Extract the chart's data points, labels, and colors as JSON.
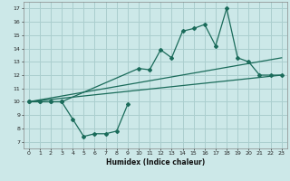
{
  "xlabel": "Humidex (Indice chaleur)",
  "bg_color": "#cce8e8",
  "grid_color": "#aacece",
  "line_color": "#1a6b5a",
  "xlim": [
    -0.5,
    23.5
  ],
  "ylim": [
    6.5,
    17.5
  ],
  "xticks": [
    0,
    1,
    2,
    3,
    4,
    5,
    6,
    7,
    8,
    9,
    10,
    11,
    12,
    13,
    14,
    15,
    16,
    17,
    18,
    19,
    20,
    21,
    22,
    23
  ],
  "yticks": [
    7,
    8,
    9,
    10,
    11,
    12,
    13,
    14,
    15,
    16,
    17
  ],
  "line1_x": [
    0,
    1,
    2,
    3,
    4,
    5,
    6,
    7,
    8,
    9
  ],
  "line1_y": [
    10,
    10,
    10,
    10,
    8.7,
    7.4,
    7.6,
    7.6,
    7.8,
    9.8
  ],
  "line2_x": [
    0,
    1,
    2,
    3,
    10,
    11,
    12,
    13,
    14,
    15,
    16,
    17,
    18,
    19,
    20,
    21,
    22,
    23
  ],
  "line2_y": [
    10,
    10,
    10,
    10,
    12.5,
    12.4,
    13.9,
    13.3,
    15.3,
    15.5,
    15.8,
    14.2,
    17.0,
    13.3,
    13.0,
    12.0,
    12.0,
    12.0
  ],
  "line3_x": [
    0,
    23
  ],
  "line3_y": [
    10,
    13.3
  ],
  "line4_x": [
    0,
    23
  ],
  "line4_y": [
    10,
    12.0
  ]
}
